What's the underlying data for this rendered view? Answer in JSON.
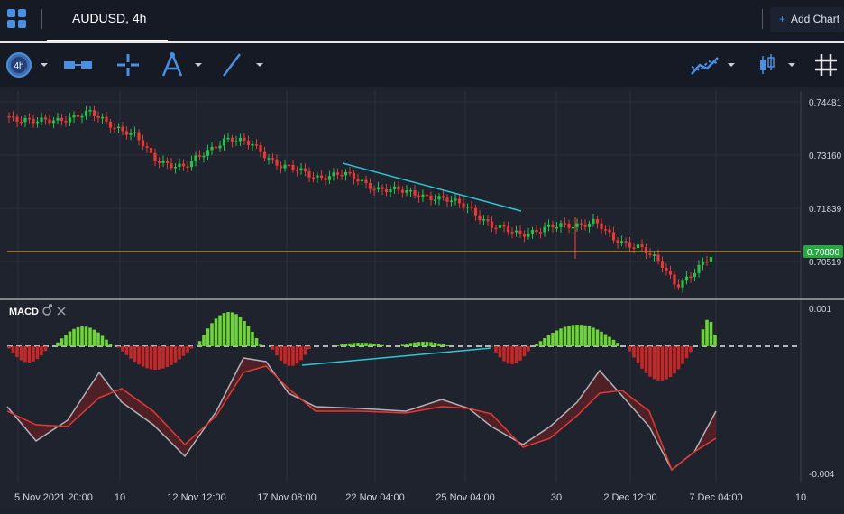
{
  "header": {
    "tab_title": "AUDUSD, 4h",
    "add_chart_label": "Add Chart",
    "add_chart_plus": "+"
  },
  "toolbar": {
    "interval_badge": "4h",
    "tools": [
      "interval-selector",
      "layout-tool",
      "crosshair-tool",
      "compass-tool",
      "line-tool",
      "indicators-tool",
      "candle-type-tool",
      "grid-toggle"
    ]
  },
  "main_pane": {
    "price_labels": [
      "0.74481",
      "0.73160",
      "0.71839",
      "0.70519"
    ],
    "current_price": "0.70800",
    "colors": {
      "up": "#26c248",
      "down": "#e53935",
      "trendline": "#2ec7d8",
      "current_line": "#b58a2f",
      "price_tag": "#27a844"
    }
  },
  "indicator_pane": {
    "name": "MACD",
    "scale_labels": [
      "0.001",
      "-0.004"
    ],
    "colors": {
      "hist_up": "#6dd43a",
      "hist_down": "#c62828",
      "macd_line": "#b0b3ba",
      "signal_line": "#e53935"
    }
  },
  "x_axis": {
    "labels": [
      "5 Nov 2021 20:00",
      "10",
      "12 Nov 12:00",
      "17 Nov 08:00",
      "22 Nov 04:00",
      "25 Nov 04:00",
      "30",
      "2 Dec 12:00",
      "7 Dec 04:00",
      "10"
    ]
  }
}
